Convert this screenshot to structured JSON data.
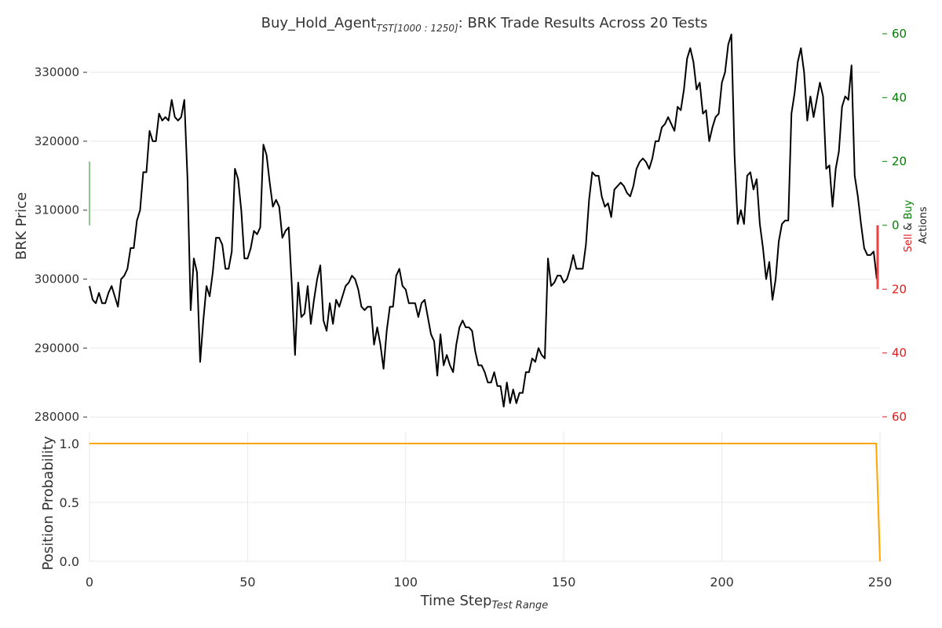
{
  "chart_data": [
    {
      "type": "line",
      "title_main": "Buy_Hold_Agent",
      "title_sub": "TST[1000 : 1250]",
      "title_rest": ": BRK Trade Results Across 20 Tests",
      "ylabel": "BRK Price",
      "ylim": [
        279000,
        336500
      ],
      "xlim": [
        0,
        250
      ],
      "yticks": [
        "280000",
        "290000",
        "300000",
        "310000",
        "320000",
        "330000"
      ],
      "grid": true,
      "line_color": "#000000",
      "points": [
        [
          0,
          299000
        ],
        [
          1,
          297000
        ],
        [
          2,
          296500
        ],
        [
          3,
          298000
        ],
        [
          4,
          296500
        ],
        [
          5,
          296500
        ],
        [
          6,
          298000
        ],
        [
          7,
          299000
        ],
        [
          8,
          297500
        ],
        [
          9,
          296000
        ],
        [
          10,
          300000
        ],
        [
          11,
          300500
        ],
        [
          12,
          301500
        ],
        [
          13,
          304500
        ],
        [
          14,
          304500
        ],
        [
          15,
          308500
        ],
        [
          16,
          310000
        ],
        [
          17,
          315500
        ],
        [
          18,
          315500
        ],
        [
          19,
          321500
        ],
        [
          20,
          320000
        ],
        [
          21,
          320000
        ],
        [
          22,
          324000
        ],
        [
          23,
          323000
        ],
        [
          24,
          323500
        ],
        [
          25,
          323000
        ],
        [
          26,
          326000
        ],
        [
          27,
          323500
        ],
        [
          28,
          323000
        ],
        [
          29,
          323500
        ],
        [
          30,
          326000
        ],
        [
          31,
          314500
        ],
        [
          32,
          295500
        ],
        [
          33,
          303000
        ],
        [
          34,
          301000
        ],
        [
          35,
          288000
        ],
        [
          36,
          294000
        ],
        [
          37,
          299000
        ],
        [
          38,
          297500
        ],
        [
          39,
          301000
        ],
        [
          40,
          306000
        ],
        [
          41,
          306000
        ],
        [
          42,
          305000
        ],
        [
          43,
          301500
        ],
        [
          44,
          301500
        ],
        [
          45,
          304000
        ],
        [
          46,
          316000
        ],
        [
          47,
          314500
        ],
        [
          48,
          310000
        ],
        [
          49,
          303000
        ],
        [
          50,
          303000
        ],
        [
          51,
          304500
        ],
        [
          52,
          307000
        ],
        [
          53,
          306500
        ],
        [
          54,
          307500
        ],
        [
          55,
          319500
        ],
        [
          56,
          318000
        ],
        [
          57,
          314000
        ],
        [
          58,
          310500
        ],
        [
          59,
          311500
        ],
        [
          60,
          310500
        ],
        [
          61,
          306000
        ],
        [
          62,
          307000
        ],
        [
          63,
          307500
        ],
        [
          64,
          299000
        ],
        [
          65,
          289000
        ],
        [
          66,
          299500
        ],
        [
          67,
          294500
        ],
        [
          68,
          295000
        ],
        [
          69,
          299000
        ],
        [
          70,
          293500
        ],
        [
          71,
          297000
        ],
        [
          72,
          300000
        ],
        [
          73,
          302000
        ],
        [
          74,
          294000
        ],
        [
          75,
          292500
        ],
        [
          76,
          296500
        ],
        [
          77,
          293500
        ],
        [
          78,
          297000
        ],
        [
          79,
          296000
        ],
        [
          80,
          297500
        ],
        [
          81,
          299000
        ],
        [
          82,
          299500
        ],
        [
          83,
          300500
        ],
        [
          84,
          300000
        ],
        [
          85,
          298500
        ],
        [
          86,
          296000
        ],
        [
          87,
          295500
        ],
        [
          88,
          296000
        ],
        [
          89,
          296000
        ],
        [
          90,
          290500
        ],
        [
          91,
          293000
        ],
        [
          92,
          290500
        ],
        [
          93,
          287000
        ],
        [
          94,
          292500
        ],
        [
          95,
          296000
        ],
        [
          96,
          296000
        ],
        [
          97,
          300500
        ],
        [
          98,
          301500
        ],
        [
          99,
          299000
        ],
        [
          100,
          298500
        ],
        [
          101,
          296500
        ],
        [
          102,
          296500
        ],
        [
          103,
          296500
        ],
        [
          104,
          294500
        ],
        [
          105,
          296500
        ],
        [
          106,
          297000
        ],
        [
          107,
          294500
        ],
        [
          108,
          292000
        ],
        [
          109,
          291000
        ],
        [
          110,
          286000
        ],
        [
          111,
          292000
        ],
        [
          112,
          287500
        ],
        [
          113,
          289000
        ],
        [
          114,
          287500
        ],
        [
          115,
          286500
        ],
        [
          116,
          290500
        ],
        [
          117,
          293000
        ],
        [
          118,
          294000
        ],
        [
          119,
          293000
        ],
        [
          120,
          293000
        ],
        [
          121,
          292500
        ],
        [
          122,
          289500
        ],
        [
          123,
          287500
        ],
        [
          124,
          287500
        ],
        [
          125,
          286500
        ],
        [
          126,
          285000
        ],
        [
          127,
          285000
        ],
        [
          128,
          286500
        ],
        [
          129,
          284500
        ],
        [
          130,
          284500
        ],
        [
          131,
          281500
        ],
        [
          132,
          285000
        ],
        [
          133,
          282000
        ],
        [
          134,
          284000
        ],
        [
          135,
          282000
        ],
        [
          136,
          283500
        ],
        [
          137,
          283500
        ],
        [
          138,
          286500
        ],
        [
          139,
          286500
        ],
        [
          140,
          288500
        ],
        [
          141,
          288000
        ],
        [
          142,
          290000
        ],
        [
          143,
          289000
        ],
        [
          144,
          288500
        ],
        [
          145,
          303000
        ],
        [
          146,
          299000
        ],
        [
          147,
          299500
        ],
        [
          148,
          300500
        ],
        [
          149,
          300500
        ],
        [
          150,
          299500
        ],
        [
          151,
          300000
        ],
        [
          152,
          301500
        ],
        [
          153,
          303500
        ],
        [
          154,
          301500
        ],
        [
          155,
          301500
        ],
        [
          156,
          301500
        ],
        [
          157,
          305000
        ],
        [
          158,
          311500
        ],
        [
          159,
          315500
        ],
        [
          160,
          315000
        ],
        [
          161,
          315000
        ],
        [
          162,
          312000
        ],
        [
          163,
          310500
        ],
        [
          164,
          311000
        ],
        [
          165,
          309000
        ],
        [
          166,
          313000
        ],
        [
          167,
          313500
        ],
        [
          168,
          314000
        ],
        [
          169,
          313500
        ],
        [
          170,
          312500
        ],
        [
          171,
          312000
        ],
        [
          172,
          313500
        ],
        [
          173,
          316000
        ],
        [
          174,
          317000
        ],
        [
          175,
          317500
        ],
        [
          176,
          317000
        ],
        [
          177,
          316000
        ],
        [
          178,
          317500
        ],
        [
          179,
          320000
        ],
        [
          180,
          320000
        ],
        [
          181,
          322000
        ],
        [
          182,
          322500
        ],
        [
          183,
          323500
        ],
        [
          184,
          322500
        ],
        [
          185,
          321500
        ],
        [
          186,
          325000
        ],
        [
          187,
          324500
        ],
        [
          188,
          327500
        ],
        [
          189,
          332000
        ],
        [
          190,
          333500
        ],
        [
          191,
          331500
        ],
        [
          192,
          327500
        ],
        [
          193,
          328500
        ],
        [
          194,
          324000
        ],
        [
          195,
          324500
        ],
        [
          196,
          320000
        ],
        [
          197,
          322000
        ],
        [
          198,
          323500
        ],
        [
          199,
          324000
        ],
        [
          200,
          328500
        ],
        [
          201,
          330000
        ],
        [
          202,
          334000
        ],
        [
          203,
          335500
        ],
        [
          204,
          318000
        ],
        [
          205,
          308000
        ],
        [
          206,
          310000
        ],
        [
          207,
          308000
        ],
        [
          208,
          315000
        ],
        [
          209,
          315500
        ],
        [
          210,
          313000
        ],
        [
          211,
          314500
        ],
        [
          212,
          308000
        ],
        [
          213,
          304500
        ],
        [
          214,
          300000
        ],
        [
          215,
          302500
        ],
        [
          216,
          297000
        ],
        [
          217,
          300000
        ],
        [
          218,
          305500
        ],
        [
          219,
          308000
        ],
        [
          220,
          308500
        ],
        [
          221,
          308500
        ],
        [
          222,
          324000
        ],
        [
          223,
          327000
        ],
        [
          224,
          331500
        ],
        [
          225,
          333500
        ],
        [
          226,
          330000
        ],
        [
          227,
          323000
        ],
        [
          228,
          326500
        ],
        [
          229,
          323500
        ],
        [
          230,
          326000
        ],
        [
          231,
          328500
        ],
        [
          232,
          326500
        ],
        [
          233,
          316000
        ],
        [
          234,
          316500
        ],
        [
          235,
          310500
        ],
        [
          236,
          316000
        ],
        [
          237,
          318500
        ],
        [
          238,
          325000
        ],
        [
          239,
          326500
        ],
        [
          240,
          326000
        ],
        [
          241,
          331000
        ],
        [
          242,
          315000
        ],
        [
          243,
          312000
        ],
        [
          244,
          308000
        ],
        [
          245,
          304500
        ],
        [
          246,
          303500
        ],
        [
          247,
          303500
        ],
        [
          248,
          304000
        ],
        [
          249,
          300000
        ]
      ]
    },
    {
      "type": "bar",
      "ylabel_parts": [
        {
          "text": "Sell",
          "color": "#e31a1c"
        },
        {
          "text": "&",
          "color": "#222222"
        },
        {
          "text": "Buy",
          "color": "#008000"
        }
      ],
      "ylabel_line2": "Actions",
      "ylim": [
        -60,
        60
      ],
      "yticks": [
        {
          "label": "60",
          "value": 60,
          "color": "#008000"
        },
        {
          "label": "40",
          "value": 40,
          "color": "#008000"
        },
        {
          "label": "20",
          "value": 20,
          "color": "#008000"
        },
        {
          "label": "0",
          "value": 0,
          "color": "#008000"
        },
        {
          "label": "20",
          "value": -20,
          "color": "#e31a1c"
        },
        {
          "label": "40",
          "value": -40,
          "color": "#e31a1c"
        },
        {
          "label": "60",
          "value": -60,
          "color": "#e31a1c"
        }
      ],
      "series": [
        {
          "color": "#6ab46a",
          "points": [
            [
              0,
              20
            ]
          ]
        },
        {
          "color": "#f04040",
          "points": [
            [
              250,
              -20
            ]
          ]
        }
      ]
    },
    {
      "type": "line",
      "ylabel": "Position Probability",
      "xlabel_main": "Time Step",
      "xlabel_sub": "Test Range",
      "ylim": [
        0,
        1.1
      ],
      "xlim": [
        0,
        250
      ],
      "yticks": [
        "0.0",
        "0.5",
        "1.0"
      ],
      "xticks": [
        "0",
        "50",
        "100",
        "150",
        "200",
        "250"
      ],
      "grid": true,
      "line_color": "#ffa500",
      "points": [
        [
          0,
          1.0
        ],
        [
          248.8,
          1.0
        ],
        [
          250,
          0.0
        ]
      ]
    }
  ]
}
